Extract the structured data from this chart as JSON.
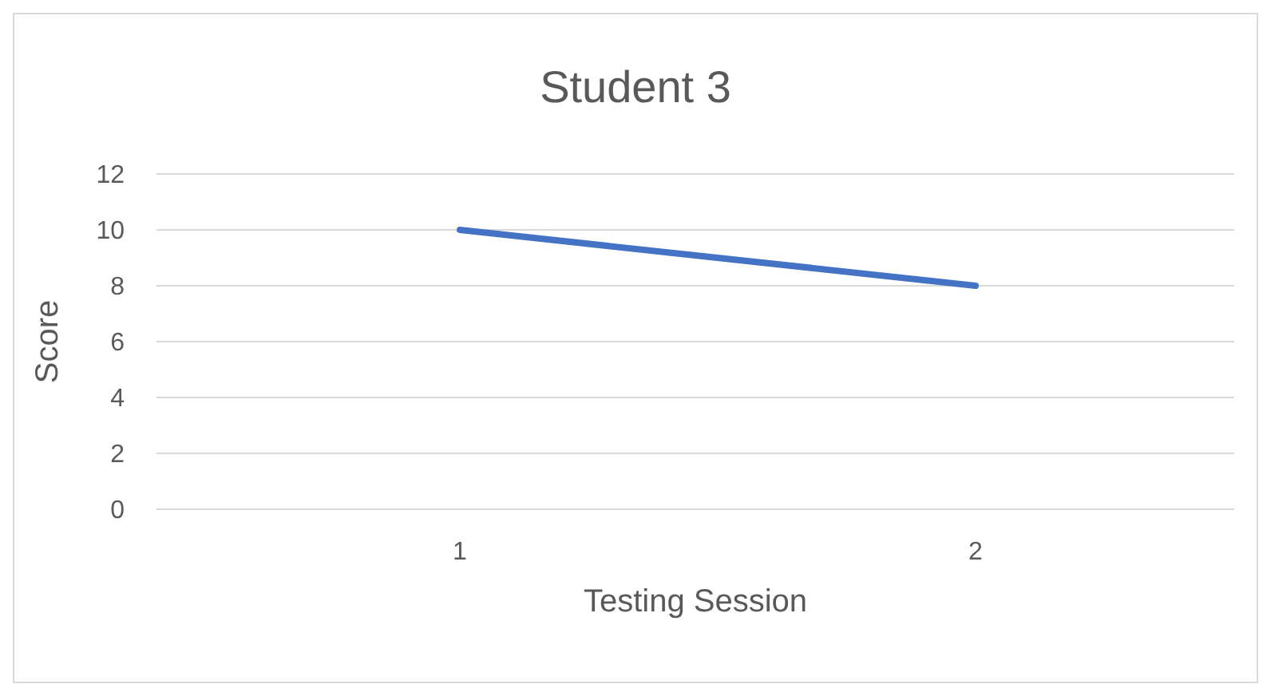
{
  "chart_data": {
    "type": "line",
    "title": "Student 3",
    "xlabel": "Testing Session",
    "ylabel": "Score",
    "categories": [
      "1",
      "2"
    ],
    "series": [
      {
        "color": "#4472c4",
        "values": [
          10,
          8
        ]
      }
    ],
    "ylim": [
      0,
      12
    ],
    "yticks": [
      0,
      2,
      4,
      6,
      8,
      10,
      12
    ],
    "grid": "y",
    "marker": "none",
    "line_style": "solid"
  }
}
